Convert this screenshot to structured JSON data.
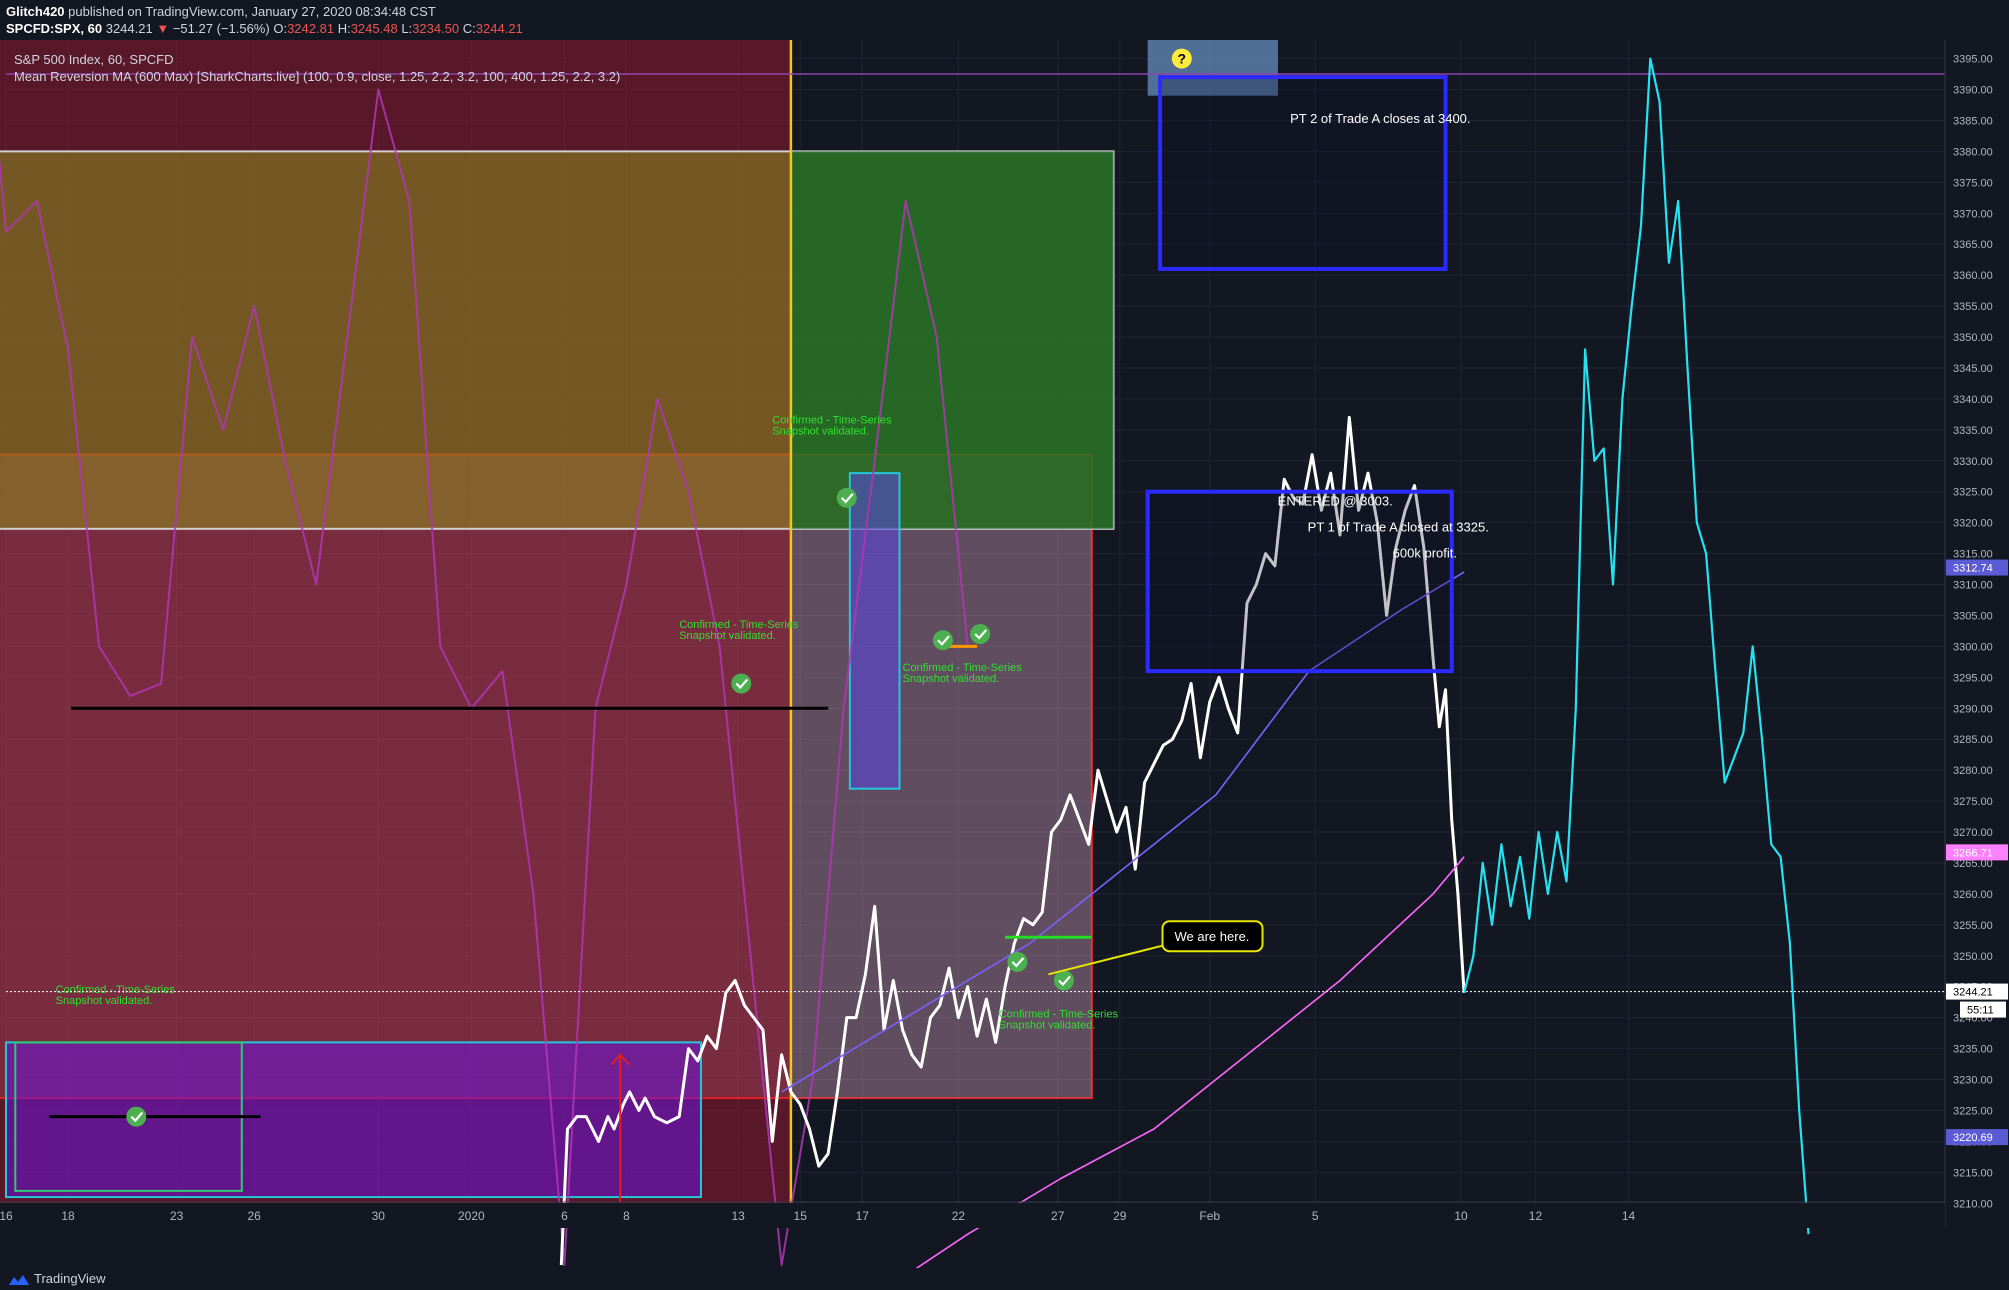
{
  "header": {
    "publisher": "Glitch420",
    "published_text": "published on TradingView.com, January 27, 2020 08:34:48 CST",
    "symbol": "SPCFD:SPX, 60",
    "last": "3244.21",
    "arrow": "▼",
    "change": "−51.27 (−1.56%)",
    "o_label": "O:",
    "o_value": "3242.81",
    "h_label": "H:",
    "h_value": "3245.48",
    "l_label": "L:",
    "l_value": "3234.50",
    "c_label": "C:",
    "c_value": "3244.21"
  },
  "legend": {
    "series_title": "S&P 500 Index, 60, SPCFD",
    "indicator": "Mean Reversion MA (600 Max) [SharkCharts.live] (100, 0.9, close, 1.25, 2.2, 3.2, 100, 400, 1.25, 2.2, 3.2)"
  },
  "footer": {
    "brand": "TradingView"
  },
  "colors": {
    "background": "#131722",
    "price_line": "#ffffff",
    "projection_line": "#26e2f0",
    "vertical_marker": "#f5c518",
    "ma_pink": "#ff66ff",
    "ma_violet": "#7b61ff",
    "oscillator": "#b136b6",
    "label_green": "#2ee02e",
    "label_blue": "#2b2bff",
    "checkmark": "#4caf50"
  },
  "chart_data": {
    "type": "line",
    "title": "S&P 500 Index, 60, SPCFD",
    "ylim": [
      3206,
      3398
    ],
    "y_ticks": [
      3210,
      3215,
      3220,
      3225,
      3230,
      3235,
      3240,
      3245,
      3250,
      3255,
      3260,
      3265,
      3270,
      3275,
      3280,
      3285,
      3290,
      3295,
      3300,
      3305,
      3310,
      3315,
      3320,
      3325,
      3330,
      3335,
      3340,
      3345,
      3350,
      3355,
      3360,
      3365,
      3370,
      3375,
      3380,
      3385,
      3390,
      3395
    ],
    "x_tick_labels": [
      "16",
      "18",
      "23",
      "26",
      "30",
      "2020",
      "6",
      "8",
      "13",
      "15",
      "17",
      "22",
      "27",
      "29",
      "Feb",
      "5",
      "10",
      "12",
      "14"
    ],
    "price_labels": [
      {
        "value": 3312.74,
        "text": "3312.74",
        "color": "#5b5bd6"
      },
      {
        "value": 3266.71,
        "text": "3266.71",
        "color": "#ff80ff"
      },
      {
        "value": 3244.21,
        "text": "3244.21",
        "color": "#ffffff"
      },
      {
        "value": 3220.69,
        "text": "3220.69",
        "color": "#5b5bd6"
      }
    ],
    "countdown": "55:11",
    "series": [
      {
        "name": "S&P 500 Index",
        "points": [
          [
            18.9,
            3200
          ],
          [
            19.1,
            3222
          ],
          [
            19.4,
            3224
          ],
          [
            19.7,
            3224
          ],
          [
            19.9,
            3222
          ],
          [
            20.1,
            3220
          ],
          [
            20.4,
            3224
          ],
          [
            20.6,
            3222
          ],
          [
            20.9,
            3226
          ],
          [
            21.1,
            3228
          ],
          [
            21.4,
            3225
          ],
          [
            21.6,
            3227
          ],
          [
            21.9,
            3224
          ],
          [
            22.3,
            3223
          ],
          [
            22.7,
            3224
          ],
          [
            23.0,
            3235
          ],
          [
            23.3,
            3233
          ],
          [
            23.6,
            3237
          ],
          [
            23.9,
            3235
          ],
          [
            24.2,
            3244
          ],
          [
            24.5,
            3246
          ],
          [
            24.8,
            3242
          ],
          [
            25.1,
            3240
          ],
          [
            25.4,
            3238
          ],
          [
            25.7,
            3220
          ],
          [
            26.0,
            3234
          ],
          [
            26.3,
            3228
          ],
          [
            26.6,
            3226
          ],
          [
            26.9,
            3222
          ],
          [
            27.2,
            3216
          ],
          [
            27.5,
            3218
          ],
          [
            27.8,
            3228
          ],
          [
            28.1,
            3240
          ],
          [
            28.4,
            3240
          ],
          [
            28.7,
            3247
          ],
          [
            29.0,
            3258
          ],
          [
            29.3,
            3238
          ],
          [
            29.6,
            3246
          ],
          [
            29.9,
            3238
          ],
          [
            30.2,
            3234
          ],
          [
            30.5,
            3232
          ],
          [
            30.8,
            3240
          ],
          [
            31.1,
            3242
          ],
          [
            31.4,
            3248
          ],
          [
            31.7,
            3240
          ],
          [
            32.0,
            3245
          ],
          [
            32.3,
            3237
          ],
          [
            32.6,
            3243
          ],
          [
            32.9,
            3236
          ],
          [
            33.2,
            3245
          ],
          [
            33.5,
            3252
          ],
          [
            33.8,
            3256
          ],
          [
            34.1,
            3255
          ],
          [
            34.4,
            3257
          ],
          [
            34.7,
            3270
          ],
          [
            35.0,
            3272
          ],
          [
            35.3,
            3276
          ],
          [
            35.6,
            3272
          ],
          [
            35.9,
            3268
          ],
          [
            36.2,
            3280
          ],
          [
            36.5,
            3275
          ],
          [
            36.8,
            3270
          ],
          [
            37.1,
            3274
          ],
          [
            37.4,
            3264
          ],
          [
            37.7,
            3278
          ],
          [
            38.0,
            3281
          ],
          [
            38.3,
            3284
          ],
          [
            38.6,
            3285
          ],
          [
            38.9,
            3288
          ],
          [
            39.2,
            3294
          ],
          [
            39.5,
            3282
          ],
          [
            39.8,
            3291
          ],
          [
            40.1,
            3295
          ],
          [
            40.4,
            3290
          ],
          [
            40.7,
            3286
          ],
          [
            41.0,
            3307
          ],
          [
            41.3,
            3310
          ],
          [
            41.6,
            3315
          ],
          [
            41.9,
            3313
          ],
          [
            42.2,
            3327
          ],
          [
            42.5,
            3324
          ],
          [
            42.8,
            3323
          ],
          [
            43.1,
            3331
          ],
          [
            43.4,
            3322
          ],
          [
            43.7,
            3328
          ],
          [
            44.0,
            3318
          ],
          [
            44.3,
            3337
          ],
          [
            44.6,
            3322
          ],
          [
            44.9,
            3328
          ],
          [
            45.2,
            3320
          ],
          [
            45.5,
            3305
          ],
          [
            45.8,
            3316
          ],
          [
            46.1,
            3322
          ],
          [
            46.4,
            3326
          ],
          [
            46.7,
            3316
          ],
          [
            47.0,
            3298
          ],
          [
            47.2,
            3287
          ],
          [
            47.4,
            3293
          ],
          [
            47.6,
            3272
          ],
          [
            47.8,
            3260
          ],
          [
            48.0,
            3244
          ]
        ],
        "color": "#ffffff"
      },
      {
        "name": "Projection",
        "points": [
          [
            48.0,
            3244
          ],
          [
            48.3,
            3250
          ],
          [
            48.6,
            3265
          ],
          [
            48.9,
            3255
          ],
          [
            49.2,
            3268
          ],
          [
            49.5,
            3258
          ],
          [
            49.8,
            3266
          ],
          [
            50.1,
            3256
          ],
          [
            50.4,
            3270
          ],
          [
            50.7,
            3260
          ],
          [
            51.0,
            3270
          ],
          [
            51.3,
            3262
          ],
          [
            51.6,
            3290
          ],
          [
            51.9,
            3348
          ],
          [
            52.2,
            3330
          ],
          [
            52.5,
            3332
          ],
          [
            52.8,
            3310
          ],
          [
            53.1,
            3340
          ],
          [
            53.4,
            3355
          ],
          [
            53.7,
            3368
          ],
          [
            54.0,
            3395
          ],
          [
            54.3,
            3388
          ],
          [
            54.6,
            3362
          ],
          [
            54.9,
            3372
          ],
          [
            55.2,
            3345
          ],
          [
            55.5,
            3320
          ],
          [
            55.8,
            3315
          ],
          [
            56.1,
            3296
          ],
          [
            56.4,
            3278
          ],
          [
            56.7,
            3282
          ],
          [
            57.0,
            3286
          ],
          [
            57.3,
            3300
          ],
          [
            57.6,
            3285
          ],
          [
            57.9,
            3268
          ],
          [
            58.2,
            3266
          ],
          [
            58.5,
            3252
          ],
          [
            58.8,
            3225
          ],
          [
            59.1,
            3205
          ]
        ],
        "color": "#26e2f0"
      },
      {
        "name": "MA Pink",
        "points": [
          [
            29.0,
            3195
          ],
          [
            32.0,
            3205
          ],
          [
            35.0,
            3214
          ],
          [
            38.0,
            3222
          ],
          [
            41.0,
            3234
          ],
          [
            44.0,
            3246
          ],
          [
            47.0,
            3260
          ],
          [
            48.0,
            3266
          ]
        ],
        "color": "#ff66ff"
      },
      {
        "name": "MA Violet",
        "points": [
          [
            26.0,
            3228
          ],
          [
            30.0,
            3240
          ],
          [
            34.0,
            3252
          ],
          [
            37.0,
            3264
          ],
          [
            40.0,
            3276
          ],
          [
            43.0,
            3296
          ],
          [
            46.0,
            3306
          ],
          [
            48.0,
            3312
          ]
        ],
        "color": "#7b61ff"
      },
      {
        "name": "Oscillator",
        "points": [
          [
            0,
            3420
          ],
          [
            1,
            3367
          ],
          [
            2,
            3372
          ],
          [
            3,
            3348
          ],
          [
            4,
            3300
          ],
          [
            5,
            3292
          ],
          [
            6,
            3294
          ],
          [
            7,
            3350
          ],
          [
            8,
            3335
          ],
          [
            9,
            3355
          ],
          [
            10,
            3330
          ],
          [
            11,
            3310
          ],
          [
            12,
            3350
          ],
          [
            13,
            3390
          ],
          [
            14,
            3372
          ],
          [
            15,
            3300
          ],
          [
            16,
            3290
          ],
          [
            17,
            3296
          ],
          [
            18,
            3260
          ],
          [
            19,
            3200
          ],
          [
            20,
            3290
          ],
          [
            21,
            3310
          ],
          [
            22,
            3340
          ],
          [
            23,
            3325
          ],
          [
            24,
            3300
          ],
          [
            25,
            3250
          ],
          [
            26,
            3200
          ],
          [
            27,
            3230
          ],
          [
            28,
            3290
          ],
          [
            29,
            3330
          ],
          [
            30,
            3372
          ],
          [
            31,
            3350
          ],
          [
            32,
            3300
          ]
        ],
        "color": "#b136b6"
      }
    ],
    "zones": [
      {
        "x0": 0,
        "x1": 26.3,
        "y0": 3206,
        "y1": 3398,
        "fill": "rgba(145,25,50,0.55)",
        "stroke": "none"
      },
      {
        "x0": 0,
        "x1": 36.0,
        "y0": 3227,
        "y1": 3331,
        "fill": "rgba(240,120,140,0.22)",
        "stroke": "#e02020"
      },
      {
        "x0": 0,
        "x1": 36.7,
        "y0": 3319,
        "y1": 3380,
        "fill": "rgba(140,140,30,0.55)",
        "stroke": "#d0d0d0"
      },
      {
        "x0": 26.3,
        "x1": 36.7,
        "y0": 3319,
        "y1": 3380,
        "fill": "rgba(20,110,40,0.7)",
        "stroke": "none"
      },
      {
        "x0": 26.3,
        "x1": 36.0,
        "y0": 3227,
        "y1": 3319,
        "fill": "rgba(200,200,230,0.22)",
        "stroke": "none"
      },
      {
        "x0": 1.0,
        "x1": 23.4,
        "y0": 3211,
        "y1": 3236,
        "fill": "rgba(110,20,220,0.55)",
        "stroke": "#26c6da"
      },
      {
        "x0": 1.3,
        "x1": 8.6,
        "y0": 3212,
        "y1": 3236,
        "fill": "none",
        "stroke": "#2ecc71"
      },
      {
        "x0": 28.2,
        "x1": 29.8,
        "y0": 3277,
        "y1": 3328,
        "fill": "rgba(90,70,230,0.55)",
        "stroke": "#26c6da"
      },
      {
        "x0": 37.8,
        "x1": 42.0,
        "y0": 3389,
        "y1": 3412,
        "fill": "rgba(120,170,230,0.6)",
        "stroke": "none"
      }
    ],
    "trade_boxes": [
      {
        "x0": 38.2,
        "x1": 47.4,
        "y0": 3361,
        "y1": 3392,
        "lines": [
          "PT 2 of Trade A closes at 3400."
        ]
      },
      {
        "x0": 37.8,
        "x1": 47.6,
        "y0": 3296,
        "y1": 3325,
        "lines": [
          "ENTERED @ 3003.",
          "PT 1 of Trade A closed at 3325.",
          "600k profit."
        ]
      }
    ],
    "hlines": [
      {
        "x0": 3.1,
        "x1": 27.5,
        "y": 3290,
        "color": "#000000"
      },
      {
        "x0": 2.4,
        "x1": 9.2,
        "y": 3224,
        "color": "#000000"
      },
      {
        "x0": 33.2,
        "x1": 36.0,
        "y": 3253,
        "color": "#22dd22"
      },
      {
        "x0": 31.0,
        "x1": 32.3,
        "y": 3300,
        "color": "#ff9800"
      }
    ],
    "annotations": [
      {
        "x": 2.6,
        "y": 3244,
        "text": "Confirmed - Time-Series\nSnapshot validated."
      },
      {
        "x": 22.7,
        "y": 3303,
        "text": "Confirmed - Time-Series\nSnapshot validated."
      },
      {
        "x": 25.7,
        "y": 3336,
        "text": "Confirmed - Time-Series\nSnapshot validated."
      },
      {
        "x": 29.9,
        "y": 3296,
        "text": "Confirmed - Time-Series\nSnapshot validated."
      },
      {
        "x": 33.0,
        "y": 3240,
        "text": "Confirmed - Time-Series\nSnapshot validated."
      }
    ],
    "checkmarks": [
      [
        5.2,
        3224
      ],
      [
        24.7,
        3294
      ],
      [
        28.1,
        3324
      ],
      [
        31.2,
        3301
      ],
      [
        32.4,
        3302
      ],
      [
        33.6,
        3249
      ],
      [
        35.1,
        3246
      ]
    ],
    "callout": {
      "text": "We are here.",
      "x": 38.6,
      "y": 3253,
      "target_x": 34.6,
      "target_y": 3247
    },
    "question_marker": {
      "x": 38.9,
      "y": 3395,
      "text": "?"
    },
    "marker_x": 26.3,
    "arrow": {
      "x": 20.8,
      "y_from": 3206,
      "y_to": 3234
    }
  }
}
